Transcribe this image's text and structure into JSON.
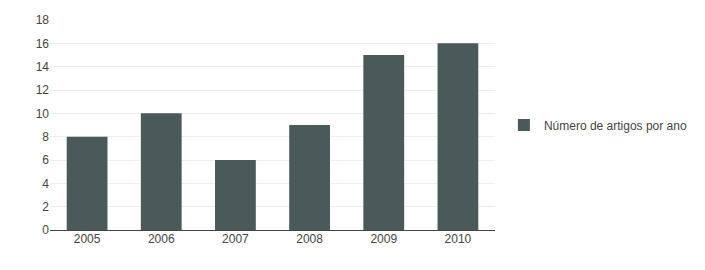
{
  "chart_data": {
    "type": "bar",
    "categories": [
      "2005",
      "2006",
      "2007",
      "2008",
      "2009",
      "2010"
    ],
    "series": [
      {
        "name": "Número de artigos por ano",
        "color": "#4a5a5a",
        "values": [
          8,
          10,
          6,
          9,
          15,
          16
        ]
      }
    ],
    "ylim": [
      0,
      18
    ],
    "yticks": [
      0,
      2,
      4,
      6,
      8,
      10,
      12,
      14,
      16,
      18
    ],
    "grid": true,
    "legend": "right"
  }
}
